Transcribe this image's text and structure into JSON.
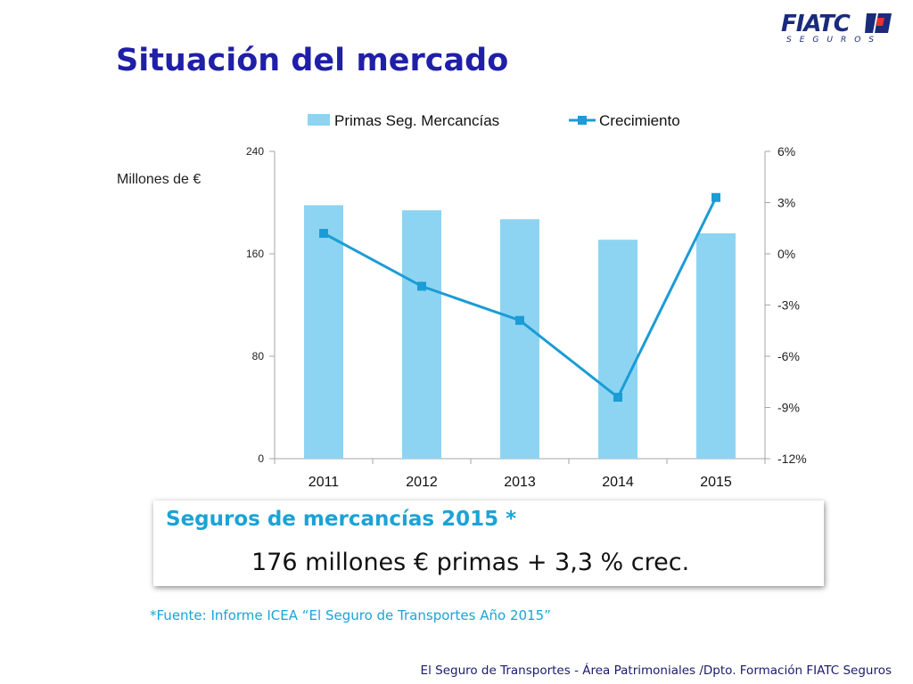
{
  "logo": {
    "word": "FIATC",
    "sub": "SEGUROS"
  },
  "title": "Situación del mercado",
  "chart_data": {
    "type": "bar",
    "categories": [
      "2011",
      "2012",
      "2013",
      "2014",
      "2015"
    ],
    "series": [
      {
        "name": "Primas Seg. Mercancías",
        "type": "bar",
        "axis": "left",
        "values": [
          198,
          194,
          187,
          171,
          176
        ]
      },
      {
        "name": "Crecimiento",
        "type": "line",
        "axis": "right",
        "values": [
          1.2,
          -1.9,
          -3.9,
          -8.4,
          3.3
        ]
      }
    ],
    "ylabel": "Millones de €",
    "y_left": {
      "range": [
        0,
        240
      ],
      "ticks": [
        "0",
        "80",
        "160",
        "240"
      ]
    },
    "y_right": {
      "range": [
        -12,
        6
      ],
      "ticks": [
        "-12%",
        "-9%",
        "-6%",
        "-3%",
        "0%",
        "3%",
        "6%"
      ]
    },
    "legend": "top",
    "grid": false,
    "colors": {
      "bar": "#8dd4f3",
      "line": "#1b9cd6"
    }
  },
  "highlight": {
    "heading": "Seguros de mercancías 2015 *",
    "body": "176 millones € primas  + 3,3 % crec."
  },
  "source": "*Fuente: Informe ICEA “El Seguro de Transportes Año 2015”",
  "footer": "El Seguro de Transportes  -  Área Patrimoniales /Dpto. Formación  FIATC Seguros"
}
